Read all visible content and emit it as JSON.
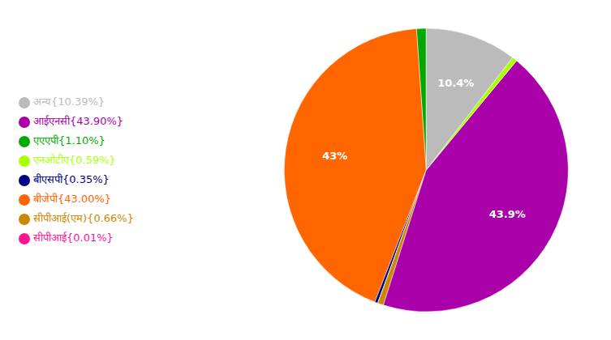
{
  "chart_data": {
    "type": "pie",
    "categories": [
      "एएएपी{1.10%}",
      "बीजेपी{43.00%}",
      "बीएसपी{0.35%}",
      "सीपीआई{0.01%}",
      "सीपीआई(एम){0.66%}",
      "आईएनसी{43.90%}",
      "एनओटीए{0.59%}",
      "अन्य{10.39%}"
    ],
    "values": [
      1.1,
      43.0,
      0.35,
      0.01,
      0.66,
      43.9,
      0.59,
      10.39
    ],
    "value_labels": [
      null,
      "43%",
      null,
      null,
      null,
      "43.9%",
      null,
      "10.4%"
    ],
    "data_labels": true,
    "colors": [
      "#00aa00",
      "#ff6600",
      "#000080",
      "#ff1493",
      "#cc8800",
      "#aa00aa",
      "#aaff00",
      "#bbbbbb"
    ],
    "legend": "left"
  }
}
